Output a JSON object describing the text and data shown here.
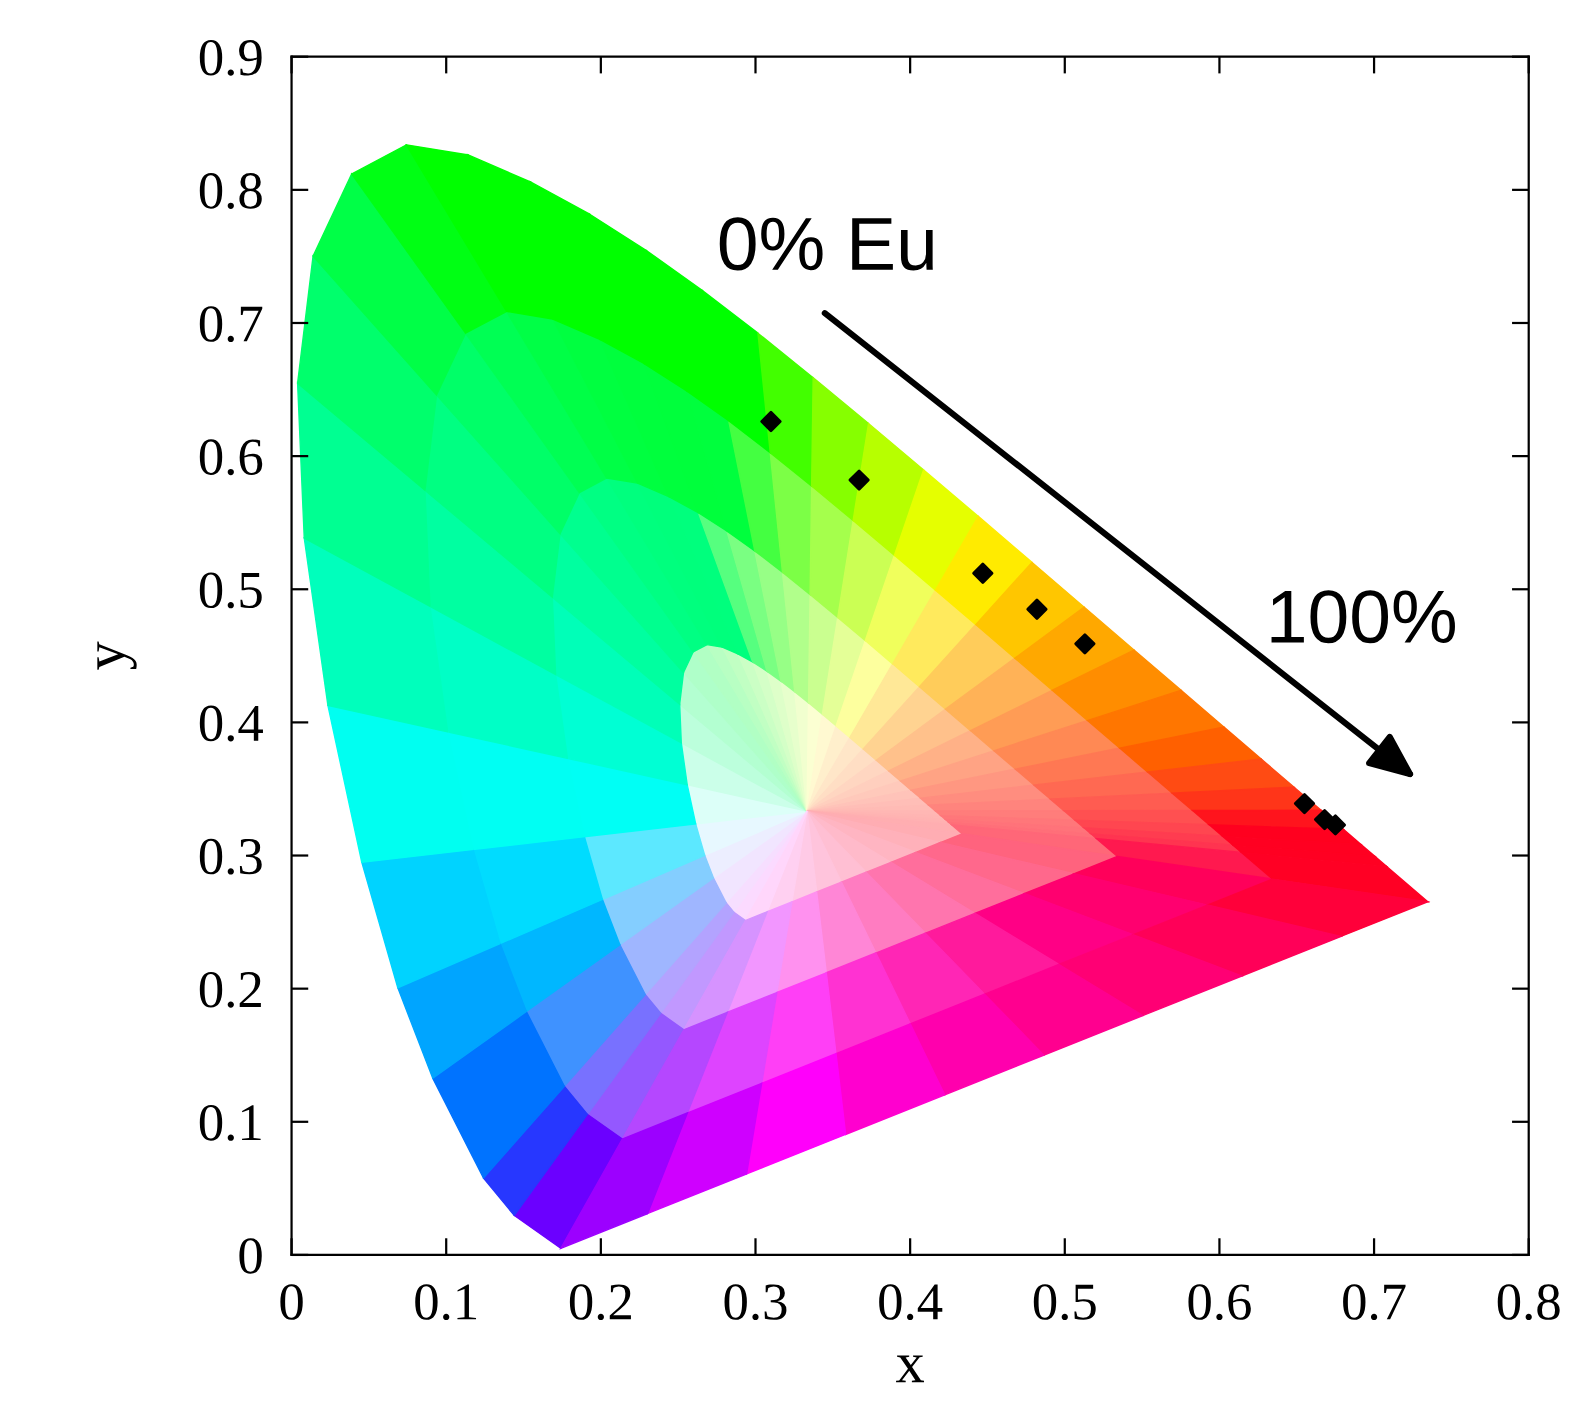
{
  "chart_data": {
    "type": "scatter",
    "xlabel": "x",
    "ylabel": "y",
    "x": [
      0.31,
      0.367,
      0.447,
      0.482,
      0.513,
      0.655,
      0.668,
      0.675
    ],
    "series": [
      {
        "color": "#000000",
        "values": [
          0.626,
          0.582,
          0.512,
          0.485,
          0.459,
          0.339,
          0.327,
          0.323
        ]
      }
    ],
    "marker": "diamond",
    "annotations": [
      "0% Eu",
      "100%"
    ],
    "xlim": [
      0,
      0.8
    ],
    "ylim": [
      0,
      0.9
    ],
    "xticks": [
      0,
      0.1,
      0.2,
      0.3,
      0.4,
      0.5,
      0.6,
      0.7,
      0.8
    ],
    "yticks": [
      0,
      0.1,
      0.2,
      0.3,
      0.4,
      0.5,
      0.6,
      0.7,
      0.8,
      0.9
    ],
    "grid": false,
    "legend": false
  }
}
